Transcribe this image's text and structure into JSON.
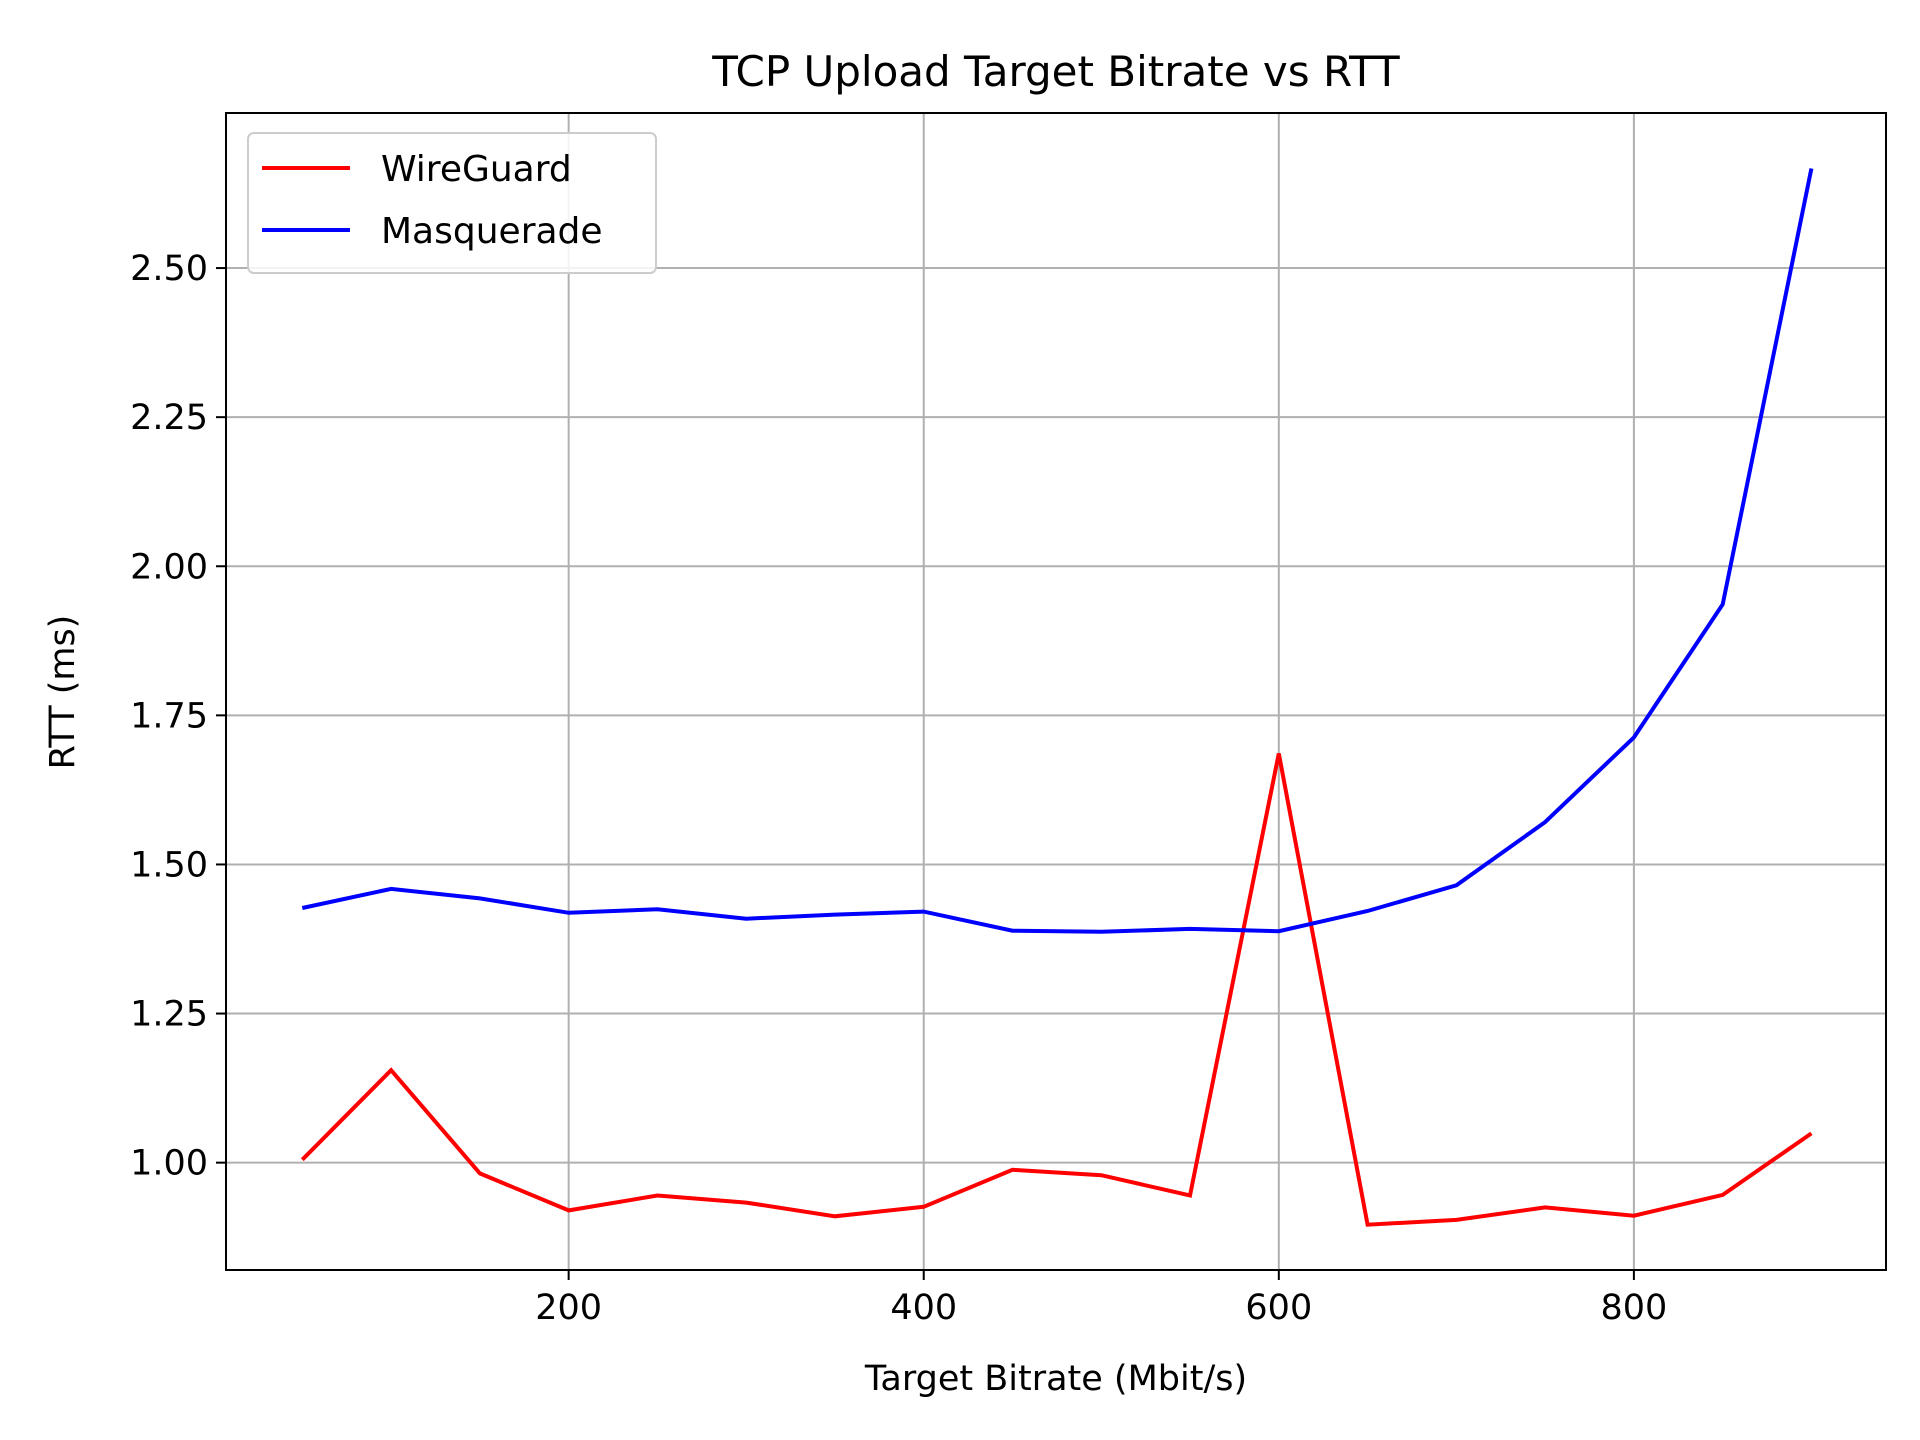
{
  "chart_data": {
    "type": "line",
    "title": "TCP Upload Target Bitrate vs RTT",
    "xlabel": "Target Bitrate (Mbit/s)",
    "ylabel": "RTT (ms)",
    "xlim": [
      7,
      942
    ],
    "ylim": [
      0.82,
      2.76
    ],
    "xticks": [
      200,
      400,
      600,
      800
    ],
    "xtick_labels": [
      "200",
      "400",
      "600",
      "800"
    ],
    "yticks": [
      1.0,
      1.25,
      1.5,
      1.75,
      2.0,
      2.25,
      2.5
    ],
    "ytick_labels": [
      "1.00",
      "1.25",
      "1.50",
      "1.75",
      "2.00",
      "2.25",
      "2.50"
    ],
    "grid": true,
    "legend_position": "top-left",
    "x": [
      50,
      100,
      150,
      200,
      250,
      300,
      350,
      400,
      450,
      500,
      550,
      600,
      650,
      700,
      750,
      800,
      850,
      900
    ],
    "series": [
      {
        "name": "WireGuard",
        "color": "#ff0000",
        "values": [
          1.005,
          1.155,
          0.982,
          0.92,
          0.945,
          0.933,
          0.91,
          0.926,
          0.988,
          0.979,
          0.945,
          1.686,
          0.896,
          0.904,
          0.925,
          0.911,
          0.946,
          1.049
        ]
      },
      {
        "name": "Masquerade",
        "color": "#0000ff",
        "values": [
          1.427,
          1.459,
          1.443,
          1.419,
          1.425,
          1.409,
          1.416,
          1.421,
          1.389,
          1.387,
          1.392,
          1.388,
          1.422,
          1.465,
          1.571,
          1.713,
          1.936,
          2.667
        ]
      }
    ]
  }
}
